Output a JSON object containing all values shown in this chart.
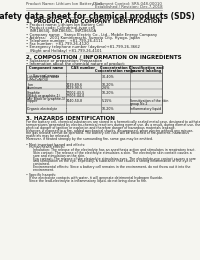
{
  "bg_color": "#f5f5f0",
  "header_left": "Product Name: Lithium Ion Battery Cell",
  "header_right_line1": "Document Control: SRS-048-00010",
  "header_right_line2": "Established / Revision: Dec.7,2018",
  "title": "Safety data sheet for chemical products (SDS)",
  "section1_title": "1. PRODUCT AND COMPANY IDENTIFICATION",
  "section1_lines": [
    "• Product name: Lithium Ion Battery Cell",
    "• Product code: Cylindrical-type cell",
    "   INR18650J, INR18650L, INR18650A",
    "• Company name:   Sanyo Electric Co., Ltd., Mobile Energy Company",
    "• Address:   2001 Kaminomachi, Sumoto City, Hyogo, Japan",
    "• Telephone number:   +81-799-26-4111",
    "• Fax number:  +81-799-26-4120",
    "• Emergency telephone number (daytime)+81-799-26-3662",
    "   (Night and Holiday) +81-799-26-4101"
  ],
  "section2_title": "2. COMPOSITION / INFORMATION ON INGREDIENTS",
  "section2_sub": "• Substance or preparation: Preparation",
  "section2_sub2": "• Information about the chemical nature of product:",
  "table_headers": [
    "Component name",
    "CAS number",
    "Concentration /\nConcentration range",
    "Classification and\nhazard labeling"
  ],
  "table_col_header": "Several names",
  "table_rows": [
    [
      "Lithium cobalt oxide\n(LiMnCoNiO4)",
      "-",
      "30-40%",
      ""
    ],
    [
      "Iron\nAluminum",
      "7439-89-6\n7429-90-5",
      "10-20%\n2-6%",
      ""
    ],
    [
      "Graphite\n(Black or graphite-1)\n(Air Black or graphite-1)",
      "77002-43-5\n77003-44-0",
      "10-20%",
      ""
    ],
    [
      "Copper",
      "7440-50-8",
      "5-15%",
      "Sensitization of the skin\ngroup No.2"
    ],
    [
      "Organic electrolyte",
      "-",
      "10-20%",
      "Inflammatory liquid"
    ]
  ],
  "section3_title": "3. HAZARDS IDENTIFICATION",
  "section3_lines": [
    "For the battery cell, chemical substances are stored in a hermetically sealed metal case, designed to withstand",
    "temperatures generated by electro-chemical reactions during normal use. As a result, during normal use, there is no",
    "physical danger of ignition or explosion and therefore danger of hazardous materials leakage.",
    "However, if exposed to a fire, added mechanical shocks, decomposed, when electro without any misuse,",
    "the gas release cannot be operated. The battery cell case will be breached of fire-patterns, hazardous",
    "materials may be released.",
    "Moreover, if heated strongly by the surrounding fire, some gas may be emitted.",
    "",
    "• Most important hazard and effects:",
    "   Human health effects:",
    "       Inhalation: The release of the electrolyte has an anesthesia action and stimulates in respiratory tract.",
    "       Skin contact: The release of the electrolyte stimulates a skin. The electrolyte skin contact causes a",
    "       sore and stimulation on the skin.",
    "       Eye contact: The release of the electrolyte stimulates eyes. The electrolyte eye contact causes a sore",
    "       and stimulation on the eye. Especially, a substance that causes a strong inflammation of the eye is",
    "       contained.",
    "       Environmental effects: Since a battery cell remains in the environment, do not throw out it into the",
    "       environment.",
    "",
    "• Specific hazards:",
    "   If the electrolyte contacts with water, it will generate detrimental hydrogen fluoride.",
    "   Since the lead-electrolyte is inflammatory liquid, do not bring close to fire."
  ]
}
